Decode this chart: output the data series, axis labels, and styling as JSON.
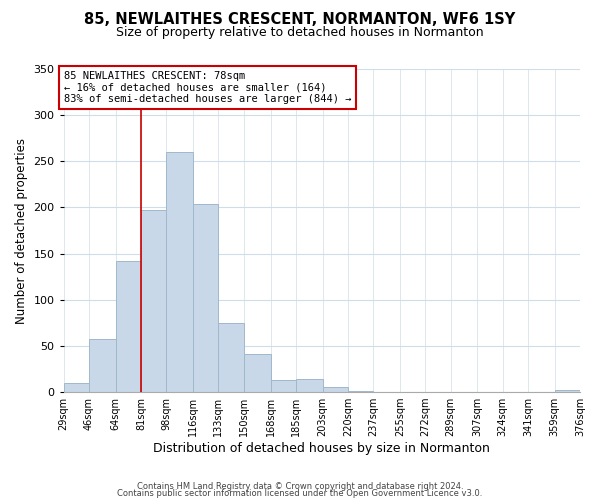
{
  "title": "85, NEWLAITHES CRESCENT, NORMANTON, WF6 1SY",
  "subtitle": "Size of property relative to detached houses in Normanton",
  "xlabel": "Distribution of detached houses by size in Normanton",
  "ylabel": "Number of detached properties",
  "bar_color": "#c8d8e8",
  "bar_edge_color": "#a0b8cc",
  "bins": [
    29,
    46,
    64,
    81,
    98,
    116,
    133,
    150,
    168,
    185,
    203,
    220,
    237,
    255,
    272,
    289,
    307,
    324,
    341,
    359,
    376
  ],
  "counts": [
    10,
    58,
    142,
    197,
    260,
    204,
    75,
    41,
    13,
    14,
    6,
    1,
    0,
    0,
    0,
    0,
    0,
    0,
    0,
    2
  ],
  "tick_labels": [
    "29sqm",
    "46sqm",
    "64sqm",
    "81sqm",
    "98sqm",
    "116sqm",
    "133sqm",
    "150sqm",
    "168sqm",
    "185sqm",
    "203sqm",
    "220sqm",
    "237sqm",
    "255sqm",
    "272sqm",
    "289sqm",
    "307sqm",
    "324sqm",
    "341sqm",
    "359sqm",
    "376sqm"
  ],
  "property_line_x": 81,
  "property_line_color": "#cc0000",
  "ylim": [
    0,
    350
  ],
  "yticks": [
    0,
    50,
    100,
    150,
    200,
    250,
    300,
    350
  ],
  "annotation_text": "85 NEWLAITHES CRESCENT: 78sqm\n← 16% of detached houses are smaller (164)\n83% of semi-detached houses are larger (844) →",
  "annotation_box_color": "#ffffff",
  "annotation_box_edge": "#cc0000",
  "footer1": "Contains HM Land Registry data © Crown copyright and database right 2024.",
  "footer2": "Contains public sector information licensed under the Open Government Licence v3.0.",
  "bg_color": "#ffffff",
  "grid_color": "#d0dde8",
  "title_fontsize": 10.5,
  "subtitle_fontsize": 9,
  "tick_fontsize": 7,
  "ylabel_fontsize": 8.5,
  "xlabel_fontsize": 9,
  "footer_fontsize": 6.0
}
